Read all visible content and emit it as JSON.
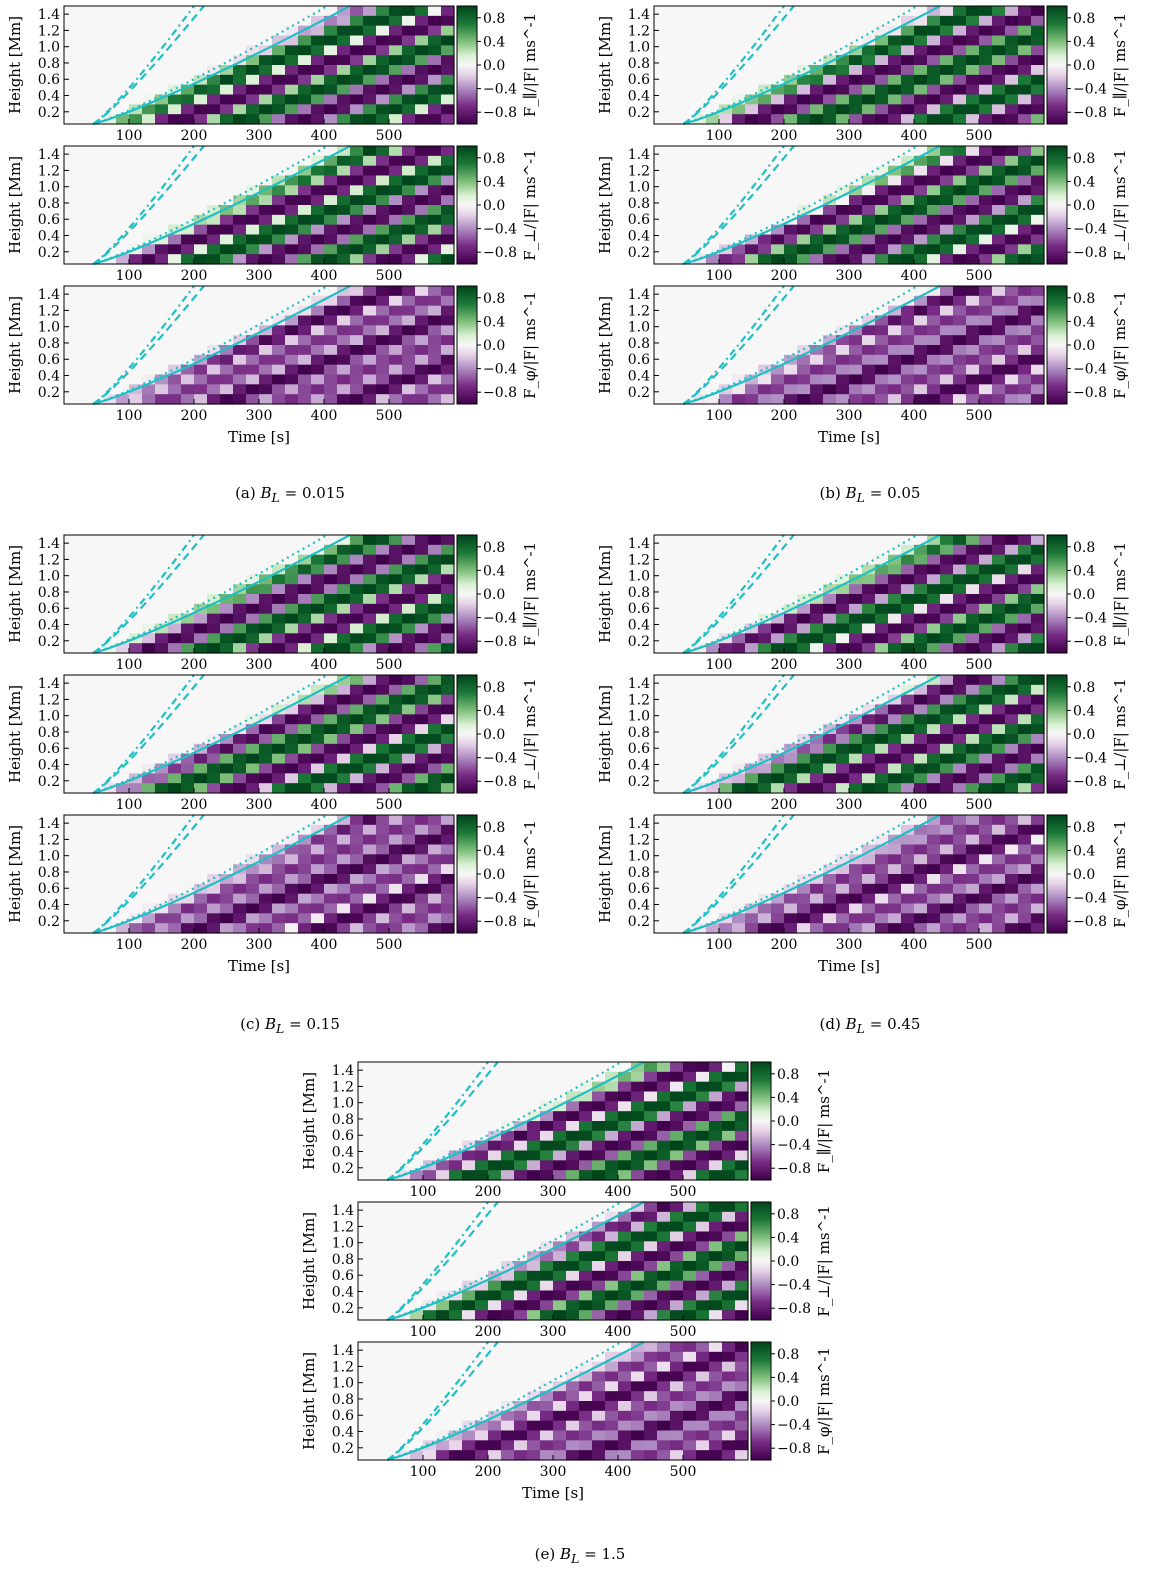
{
  "figure": {
    "panels": [
      {
        "caption": "(a) B_L = 0.015",
        "caption_prefix": "(a)",
        "caption_value": "0.015"
      },
      {
        "caption": "(b) B_L = 0.05",
        "caption_prefix": "(b)",
        "caption_value": "0.05"
      },
      {
        "caption": "(c) B_L = 0.15",
        "caption_prefix": "(c)",
        "caption_value": "0.15"
      },
      {
        "caption": "(d) B_L = 0.45",
        "caption_prefix": "(d)",
        "caption_value": "0.45"
      },
      {
        "caption": "(e) B_L = 1.5",
        "caption_prefix": "(e)",
        "caption_value": "1.5"
      }
    ]
  },
  "chart_data": {
    "type": "heatmap",
    "xlabel": "Time [s]",
    "ylabel": "Height [Mm]",
    "x_ticks": [
      100,
      200,
      300,
      400,
      500
    ],
    "y_ticks": [
      0.2,
      0.4,
      0.6,
      0.8,
      1.0,
      1.2,
      1.4
    ],
    "colorbar_ticks": [
      0.8,
      0.4,
      0.0,
      -0.4,
      -0.8
    ],
    "colorbar_range": [
      -1,
      1
    ],
    "xlim": [
      0,
      600
    ],
    "ylim": [
      0.05,
      1.5
    ],
    "colormap": "PRGn",
    "colors": {
      "positive": "#00441b",
      "neutral": "#f7f7f7",
      "negative": "#40004b",
      "overlay_lines": "#1fbfc3"
    },
    "rows": [
      {
        "quantity": "parallel",
        "colorbar_label": "F_∥/|F| ms^-1"
      },
      {
        "quantity": "perpendicular",
        "colorbar_label": "F_⊥/|F| ms^-1"
      },
      {
        "quantity": "azimuthal",
        "colorbar_label": "F_φ/|F| ms^-1"
      }
    ],
    "overlay_curves": [
      "solid",
      "dotted",
      "dashed",
      "dash-dot"
    ],
    "B_L_values": [
      0.015,
      0.05,
      0.15,
      0.45,
      1.5
    ]
  }
}
